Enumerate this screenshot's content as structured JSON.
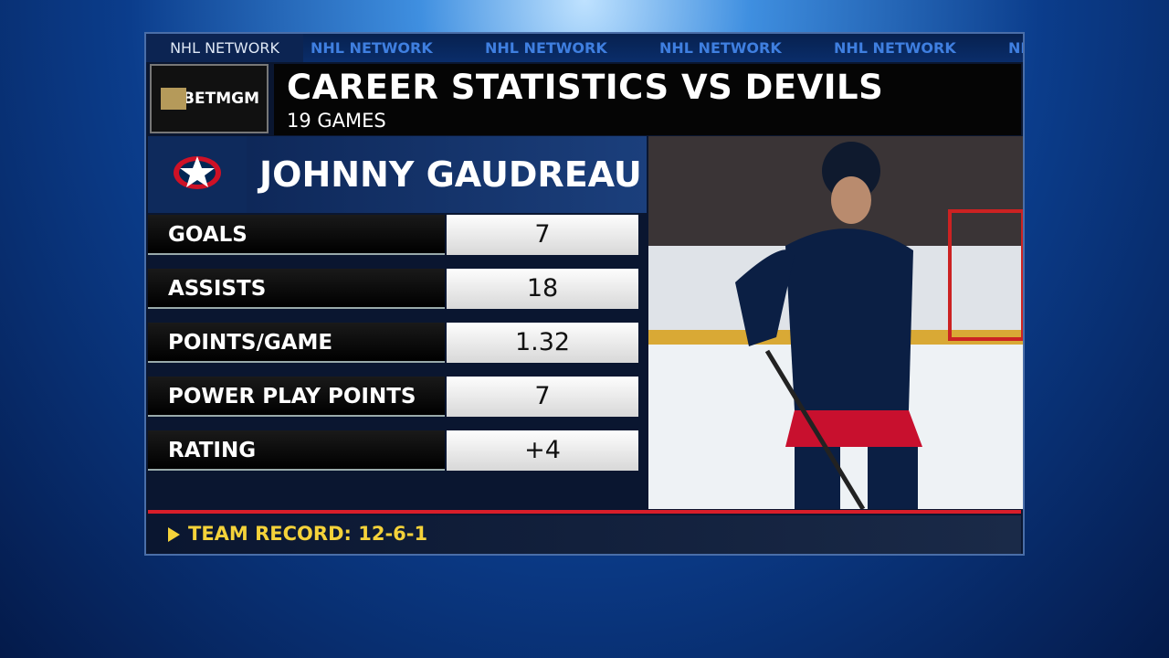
{
  "header": {
    "network_label": "NHL NETWORK",
    "ticker": [
      "NHL NETWORK",
      "NHL NETWORK",
      "NHL NETWORK",
      "NHL NETWORK",
      "NHL NETWORK"
    ],
    "sponsor": "BETMGM",
    "title": "CAREER STATISTICS VS DEVILS",
    "subtitle": "19 GAMES"
  },
  "player": {
    "name": "JOHNNY GAUDREAU"
  },
  "stats": [
    {
      "label": "GOALS",
      "value": 7
    },
    {
      "label": "ASSISTS",
      "value": 18
    },
    {
      "label": "POINTS/GAME",
      "value": 1.32
    },
    {
      "label": "POWER PLAY POINTS",
      "value": 7
    },
    {
      "label": "RATING",
      "value": "+4"
    }
  ],
  "footer": {
    "text": "TEAM RECORD: 12-6-1"
  }
}
